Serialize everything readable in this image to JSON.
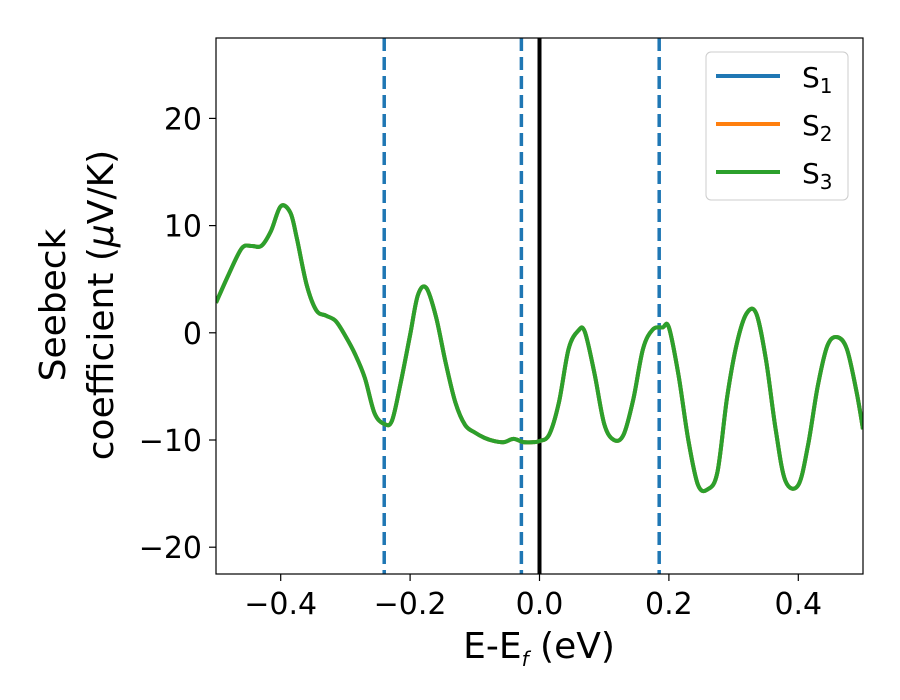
{
  "chart_data": {
    "type": "line",
    "xlabel": "E-E",
    "xlabel_subscript": "f",
    "xlabel_unit": " (eV)",
    "ylabel_line1": "Seebeck",
    "ylabel_line2_prefix": "coefficient  (",
    "ylabel_line2_mu": "μ",
    "ylabel_line2_suffix": "V/K)",
    "xlim": [
      -0.5,
      0.5
    ],
    "ylim": [
      -22.5,
      27.5
    ],
    "xticks": [
      -0.4,
      -0.2,
      0.0,
      0.2,
      0.4
    ],
    "xtick_labels": [
      "−0.4",
      "−0.2",
      "0.0",
      "0.2",
      "0.4"
    ],
    "yticks": [
      -20,
      -10,
      0,
      10,
      20
    ],
    "ytick_labels": [
      "−20",
      "−10",
      "0",
      "10",
      "20"
    ],
    "grid": false,
    "legend_position": "top-right",
    "vertical_lines": [
      {
        "x": -0.24,
        "style": "dashed",
        "color": "#1f77b4"
      },
      {
        "x": -0.028,
        "style": "dashed",
        "color": "#1f77b4"
      },
      {
        "x": 0.0,
        "style": "solid",
        "color": "#000000"
      },
      {
        "x": 0.185,
        "style": "dashed",
        "color": "#1f77b4"
      }
    ],
    "x": [
      -0.5,
      -0.48,
      -0.46,
      -0.445,
      -0.43,
      -0.415,
      -0.4,
      -0.385,
      -0.375,
      -0.36,
      -0.345,
      -0.33,
      -0.315,
      -0.3,
      -0.285,
      -0.27,
      -0.255,
      -0.24,
      -0.228,
      -0.215,
      -0.2,
      -0.188,
      -0.175,
      -0.16,
      -0.145,
      -0.13,
      -0.115,
      -0.1,
      -0.085,
      -0.07,
      -0.055,
      -0.04,
      -0.025,
      -0.01,
      0.0,
      0.015,
      0.03,
      0.045,
      0.06,
      0.07,
      0.085,
      0.1,
      0.115,
      0.13,
      0.145,
      0.16,
      0.175,
      0.19,
      0.2,
      0.215,
      0.23,
      0.245,
      0.26,
      0.275,
      0.29,
      0.305,
      0.32,
      0.335,
      0.35,
      0.365,
      0.38,
      0.4,
      0.415,
      0.43,
      0.445,
      0.46,
      0.475,
      0.49,
      0.5
    ],
    "series": [
      {
        "name": "S",
        "subscript": "1",
        "color": "#1f77b4",
        "values": [
          2.8,
          5.5,
          7.9,
          8.1,
          8.1,
          9.5,
          11.8,
          11.2,
          8.8,
          4.5,
          2.1,
          1.6,
          1.1,
          -0.3,
          -2.0,
          -4.2,
          -7.5,
          -8.5,
          -8.2,
          -4.8,
          -0.2,
          3.5,
          4.2,
          1.5,
          -2.8,
          -6.5,
          -8.6,
          -9.3,
          -9.8,
          -10.1,
          -10.2,
          -9.9,
          -10.2,
          -10.2,
          -10.1,
          -9.5,
          -6.5,
          -1.5,
          0.2,
          0.1,
          -3.8,
          -8.5,
          -10.0,
          -9.5,
          -6.2,
          -1.5,
          0.3,
          0.5,
          0.5,
          -4.0,
          -10.0,
          -14.2,
          -14.6,
          -13.0,
          -6.0,
          -1.0,
          1.8,
          1.8,
          -2.5,
          -9.0,
          -13.8,
          -14.2,
          -10.5,
          -5.0,
          -1.2,
          -0.4,
          -1.5,
          -5.5,
          -9.0
        ]
      },
      {
        "name": "S",
        "subscript": "2",
        "color": "#ff7f0e",
        "values": [
          2.8,
          5.5,
          7.9,
          8.1,
          8.1,
          9.5,
          11.8,
          11.2,
          8.8,
          4.5,
          2.1,
          1.6,
          1.1,
          -0.3,
          -2.0,
          -4.2,
          -7.5,
          -8.5,
          -8.2,
          -4.8,
          -0.2,
          3.5,
          4.2,
          1.5,
          -2.8,
          -6.5,
          -8.6,
          -9.3,
          -9.8,
          -10.1,
          -10.2,
          -9.9,
          -10.2,
          -10.2,
          -10.1,
          -9.5,
          -6.5,
          -1.5,
          0.2,
          0.1,
          -3.8,
          -8.5,
          -10.0,
          -9.5,
          -6.2,
          -1.5,
          0.3,
          0.5,
          0.5,
          -4.0,
          -10.0,
          -14.2,
          -14.6,
          -13.0,
          -6.0,
          -1.0,
          1.8,
          1.8,
          -2.5,
          -9.0,
          -13.8,
          -14.2,
          -10.5,
          -5.0,
          -1.2,
          -0.4,
          -1.5,
          -5.5,
          -9.0
        ]
      },
      {
        "name": "S",
        "subscript": "3",
        "color": "#2ca02c",
        "values": [
          2.8,
          5.5,
          7.9,
          8.1,
          8.1,
          9.5,
          11.8,
          11.2,
          8.8,
          4.5,
          2.1,
          1.6,
          1.1,
          -0.3,
          -2.0,
          -4.2,
          -7.5,
          -8.5,
          -8.2,
          -4.8,
          -0.2,
          3.5,
          4.2,
          1.5,
          -2.8,
          -6.5,
          -8.6,
          -9.3,
          -9.8,
          -10.1,
          -10.2,
          -9.9,
          -10.2,
          -10.2,
          -10.1,
          -9.5,
          -6.5,
          -1.5,
          0.2,
          0.1,
          -3.8,
          -8.5,
          -10.0,
          -9.5,
          -6.2,
          -1.5,
          0.3,
          0.5,
          0.5,
          -4.0,
          -10.0,
          -14.2,
          -14.6,
          -13.0,
          -6.0,
          -1.0,
          1.8,
          1.8,
          -2.5,
          -9.0,
          -13.8,
          -14.2,
          -10.5,
          -5.0,
          -1.2,
          -0.4,
          -1.5,
          -5.5,
          -9.0
        ]
      }
    ]
  }
}
